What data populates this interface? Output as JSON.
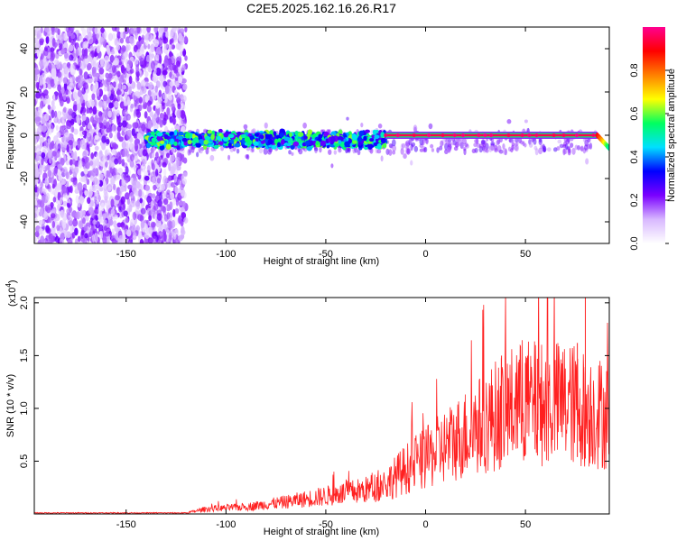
{
  "figure": {
    "title": "C2E5.2025.162.16.26.R17",
    "background": "#ffffff"
  },
  "chart_data": [
    {
      "type": "heatmap",
      "xlabel": "Height of straight line (km)",
      "ylabel": "Frequency (Hz)",
      "xlim": [
        -196,
        92
      ],
      "ylim": [
        -50,
        50
      ],
      "xticks": [
        -150,
        -100,
        -50,
        0,
        50
      ],
      "yticks": [
        -40,
        -20,
        0,
        20,
        40
      ],
      "colorbar": {
        "label": "Normalized spectral amplitude",
        "range": [
          0,
          1
        ],
        "ticks": [
          "0.0",
          "0.2",
          "0.4",
          "0.6",
          "0.8"
        ],
        "tick_values": [
          0,
          0.2,
          0.4,
          0.6,
          0.8
        ],
        "colors": [
          "#ffffff",
          "#d8b8ff",
          "#7a00ff",
          "#0000ff",
          "#00e0ff",
          "#00ff60",
          "#ffff00",
          "#ff8000",
          "#ff0000",
          "#ff0090"
        ]
      },
      "regions": [
        {
          "desc": "broadband noise",
          "x_range": [
            -196,
            -120
          ],
          "y_range": [
            -50,
            50
          ],
          "amplitude": 0.2
        },
        {
          "desc": "signal band",
          "x_range": [
            -140,
            -20
          ],
          "center_hz": -2,
          "amplitude": 0.45
        },
        {
          "desc": "strong carrier",
          "x_range": [
            -20,
            86
          ],
          "center_hz": 0,
          "amplitude": 0.95
        },
        {
          "desc": "carrier drift",
          "x_range": [
            86,
            92
          ],
          "center_hz_end": -6,
          "amplitude": 0.9
        }
      ]
    },
    {
      "type": "line",
      "xlabel": "Height of straight line (km)",
      "ylabel": "SNR (10 * v/v)",
      "y_multiplier": "(x10",
      "y_multiplier_exp": "4",
      "y_multiplier_close": ")",
      "xlim": [
        -196,
        92
      ],
      "ylim": [
        0,
        2.05
      ],
      "xticks": [
        -150,
        -100,
        -50,
        0,
        50
      ],
      "yticks": [
        0.5,
        1.0,
        1.5,
        2.0
      ],
      "ytick_labels": [
        "0.5",
        "1.0",
        "1.5",
        "2.0"
      ],
      "series": [
        {
          "color": "#ff2020",
          "envelope": {
            "x": [
              -196,
              -120,
              -110,
              -90,
              -70,
              -50,
              -30,
              -20,
              -10,
              0,
              10,
              20,
              30,
              40,
              50,
              60,
              70,
              80,
              90,
              92
            ],
            "y": [
              0.01,
              0.01,
              0.05,
              0.07,
              0.12,
              0.18,
              0.24,
              0.3,
              0.45,
              0.55,
              0.68,
              0.8,
              0.92,
              1.05,
              1.12,
              1.1,
              1.12,
              1.05,
              1.0,
              1.0
            ]
          },
          "spikes": [
            {
              "x": 80,
              "y": 2.05
            },
            {
              "x": 76,
              "y": 1.62
            },
            {
              "x": 38,
              "y": 1.5
            },
            {
              "x": 56,
              "y": 1.47
            },
            {
              "x": 50,
              "y": 1.43
            }
          ]
        }
      ]
    }
  ]
}
